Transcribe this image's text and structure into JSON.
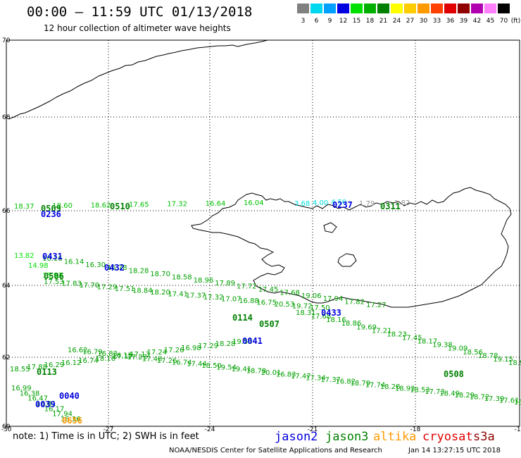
{
  "header": {
    "title": "00:00 – 11:59 UTC 01/13/2018",
    "subtitle": "12 hour collection of altimeter wave heights"
  },
  "color_scale": {
    "unit": "(ft)",
    "bins": [
      {
        "label": "3",
        "color": "#808080"
      },
      {
        "label": "6",
        "color": "#00d8f0"
      },
      {
        "label": "9",
        "color": "#00a0ff"
      },
      {
        "label": "12",
        "color": "#0000e0"
      },
      {
        "label": "15",
        "color": "#00e000"
      },
      {
        "label": "18",
        "color": "#00b000"
      },
      {
        "label": "21",
        "color": "#008000"
      },
      {
        "label": "24",
        "color": "#ffff00"
      },
      {
        "label": "27",
        "color": "#ffcc00"
      },
      {
        "label": "30",
        "color": "#ff9900"
      },
      {
        "label": "33",
        "color": "#ff4000"
      },
      {
        "label": "36",
        "color": "#e00000"
      },
      {
        "label": "39",
        "color": "#900000"
      },
      {
        "label": "42",
        "color": "#b000b0"
      },
      {
        "label": "45",
        "color": "#ff80ff"
      },
      {
        "label": "70",
        "color": "#000000"
      }
    ]
  },
  "axes": {
    "lat_labels": [
      "70",
      "68",
      "66",
      "64",
      "62",
      "60"
    ],
    "lon_labels": [
      "-30",
      "-27",
      "-24",
      "-21",
      "-18",
      "-15"
    ]
  },
  "tracks": [
    {
      "id": "t1",
      "color": "#00c000",
      "labels": [
        "18.37",
        "18.60",
        "18.62",
        "17.65",
        "17.32",
        "16.64",
        "16.04"
      ],
      "times": []
    },
    {
      "id": "t2",
      "color": "#00e0e0",
      "labels": [
        "3.68",
        "4.00",
        "4.50"
      ],
      "times": []
    },
    {
      "id": "t3",
      "color": "#909090",
      "labels": [
        "1.79",
        "1.82"
      ],
      "times": []
    },
    {
      "id": "t4",
      "color": "#00e000",
      "labels": [
        "13.82",
        "14.98",
        "15.93"
      ],
      "times": []
    },
    {
      "id": "t5",
      "color": "#00a000",
      "labels": [
        "16.16",
        "16.14",
        "16.30",
        "16.78",
        "18.28",
        "18.70",
        "18.58",
        "18.96",
        "17.89",
        "17.72",
        "17.45",
        "17.68",
        "19.06",
        "17.94",
        "17.82",
        "17.27"
      ],
      "times": []
    },
    {
      "id": "t6",
      "color": "#00a000",
      "labels": [
        "17.53",
        "17.83",
        "17.70",
        "17.29",
        "17.51",
        "18.84",
        "18.20",
        "17.41",
        "17.37",
        "17.32",
        "17.07",
        "16.88",
        "16.75",
        "20.53",
        "19.72",
        "17.50"
      ],
      "times": []
    },
    {
      "id": "t7",
      "color": "#00a000",
      "labels": [
        "18.31",
        "17.68",
        "18.16",
        "18.86",
        "19.69",
        "17.21",
        "18.23",
        "17.45",
        "18.17",
        "19.38",
        "19.09",
        "18.56",
        "18.78",
        "19.15",
        "18.97"
      ],
      "times": []
    },
    {
      "id": "t8",
      "color": "#00a000",
      "labels": [
        "16.62",
        "16.79",
        "16.83",
        "16.15",
        "17.23",
        "17.48",
        "17.26",
        "16.74",
        "17.44",
        "18.50",
        "19.54",
        "19.41",
        "18.78",
        "20.01",
        "16.83",
        "17.47",
        "17.34",
        "17.37",
        "16.82",
        "18.79",
        "17.74",
        "18.28",
        "18.93",
        "18.53",
        "17.73",
        "18.49",
        "18.29",
        "18.72",
        "17.39",
        "17.61",
        "16.65"
      ],
      "times": []
    },
    {
      "id": "t9",
      "color": "#00a000",
      "labels": [
        "18.55",
        "17.88",
        "16.29",
        "16.12",
        "16.74",
        "18.16",
        "17.17",
        "17.13",
        "17.24",
        "17.26",
        "16.98",
        "17.29",
        "18.28",
        "19.53"
      ],
      "times": []
    },
    {
      "id": "t10",
      "color": "#00a000",
      "labels": [
        "16.99",
        "16.38",
        "16.47",
        "16.81",
        "16.17",
        "17.94",
        "16.36"
      ],
      "times": []
    }
  ],
  "time_tags": [
    {
      "text": "0509",
      "color": "#008000"
    },
    {
      "text": "0236",
      "color": "#0000e0"
    },
    {
      "text": "0510",
      "color": "#008000"
    },
    {
      "text": "0237",
      "color": "#0000e0"
    },
    {
      "text": "0311",
      "color": "#008000"
    },
    {
      "text": "0431",
      "color": "#0000e0"
    },
    {
      "text": "0432",
      "color": "#0000e0"
    },
    {
      "text": "0506",
      "color": "#008000"
    },
    {
      "text": "0114",
      "color": "#008000"
    },
    {
      "text": "0507",
      "color": "#008000"
    },
    {
      "text": "0433",
      "color": "#0000e0"
    },
    {
      "text": "0041",
      "color": "#0000e0"
    },
    {
      "text": "0113",
      "color": "#008000"
    },
    {
      "text": "0508",
      "color": "#008000"
    },
    {
      "text": "0040",
      "color": "#0000e0"
    },
    {
      "text": "0039",
      "color": "#0000e0"
    },
    {
      "text": "0656",
      "color": "#ff9900"
    }
  ],
  "footer": {
    "note": "note: 1) Time is in UTC; 2) SWH is in feet",
    "satellites": [
      {
        "name": "jason2",
        "color": "#0000e0"
      },
      {
        "name": "jason3",
        "color": "#008000"
      },
      {
        "name": "altika",
        "color": "#ff9900"
      },
      {
        "name": "cryosat",
        "color": "#e00000"
      },
      {
        "name": "s3a",
        "color": "#900000"
      }
    ],
    "credit": "NOAA/NESDIS Center for Satellite Applications and Research",
    "generated": "Jan 14 13:27:15 UTC 2018"
  }
}
